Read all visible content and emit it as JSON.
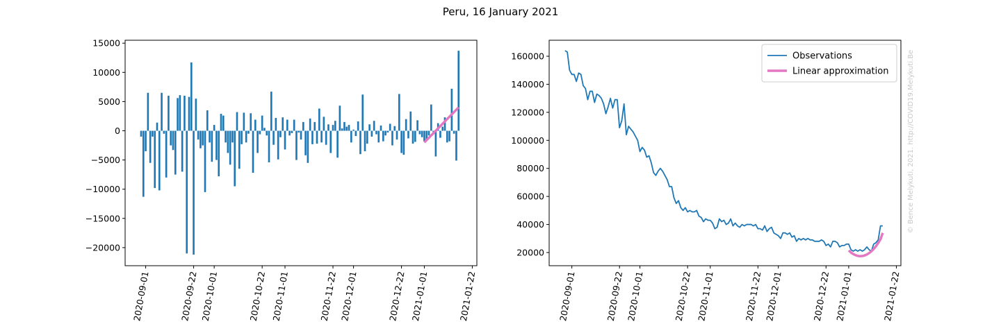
{
  "title": "Peru, 16 January 2021",
  "watermark": "© Bence Melykuti, 2021. http://COVID19.Melykuti.Be",
  "chart_data": [
    {
      "type": "bar",
      "x": [
        "2020-08-30",
        "2020-08-31",
        "2020-09-01",
        "2020-09-02",
        "2020-09-03",
        "2020-09-04",
        "2020-09-05",
        "2020-09-06",
        "2020-09-07",
        "2020-09-08",
        "2020-09-09",
        "2020-09-10",
        "2020-09-11",
        "2020-09-12",
        "2020-09-13",
        "2020-09-14",
        "2020-09-15",
        "2020-09-16",
        "2020-09-17",
        "2020-09-18",
        "2020-09-19",
        "2020-09-20",
        "2020-09-21",
        "2020-09-22",
        "2020-09-23",
        "2020-09-24",
        "2020-09-25",
        "2020-09-26",
        "2020-09-27",
        "2020-09-28",
        "2020-09-29",
        "2020-09-30",
        "2020-10-01",
        "2020-10-02",
        "2020-10-03",
        "2020-10-04",
        "2020-10-05",
        "2020-10-06",
        "2020-10-07",
        "2020-10-08",
        "2020-10-09",
        "2020-10-10",
        "2020-10-11",
        "2020-10-12",
        "2020-10-13",
        "2020-10-14",
        "2020-10-15",
        "2020-10-16",
        "2020-10-17",
        "2020-10-18",
        "2020-10-19",
        "2020-10-20",
        "2020-10-21",
        "2020-10-22",
        "2020-10-23",
        "2020-10-24",
        "2020-10-25",
        "2020-10-26",
        "2020-10-27",
        "2020-10-28",
        "2020-10-29",
        "2020-10-30",
        "2020-10-31",
        "2020-11-01",
        "2020-11-02",
        "2020-11-03",
        "2020-11-04",
        "2020-11-05",
        "2020-11-06",
        "2020-11-07",
        "2020-11-08",
        "2020-11-09",
        "2020-11-10",
        "2020-11-11",
        "2020-11-12",
        "2020-11-13",
        "2020-11-14",
        "2020-11-15",
        "2020-11-16",
        "2020-11-17",
        "2020-11-18",
        "2020-11-19",
        "2020-11-20",
        "2020-11-21",
        "2020-11-22",
        "2020-11-23",
        "2020-11-24",
        "2020-11-25",
        "2020-11-26",
        "2020-11-27",
        "2020-11-28",
        "2020-11-29",
        "2020-11-30",
        "2020-12-01",
        "2020-12-02",
        "2020-12-03",
        "2020-12-04",
        "2020-12-05",
        "2020-12-06",
        "2020-12-07",
        "2020-12-08",
        "2020-12-09",
        "2020-12-10",
        "2020-12-11",
        "2020-12-12",
        "2020-12-13",
        "2020-12-14",
        "2020-12-15",
        "2020-12-16",
        "2020-12-17",
        "2020-12-18",
        "2020-12-19",
        "2020-12-20",
        "2020-12-21",
        "2020-12-22",
        "2020-12-23",
        "2020-12-24",
        "2020-12-25",
        "2020-12-26",
        "2020-12-27",
        "2020-12-28",
        "2020-12-29",
        "2020-12-30",
        "2020-12-31",
        "2021-01-01",
        "2021-01-02",
        "2021-01-03",
        "2021-01-04",
        "2021-01-05",
        "2021-01-06",
        "2021-01-07",
        "2021-01-08",
        "2021-01-09",
        "2021-01-10",
        "2021-01-11",
        "2021-01-12",
        "2021-01-13",
        "2021-01-14",
        "2021-01-15",
        "2021-01-16"
      ],
      "values": [
        -1000,
        -11300,
        -3500,
        6500,
        -5500,
        -1000,
        -9800,
        1400,
        -10200,
        6500,
        -500,
        -8000,
        6000,
        -2500,
        -3300,
        -7500,
        5600,
        6100,
        -7000,
        6000,
        -21000,
        5800,
        11700,
        -21200,
        5500,
        -1500,
        -3000,
        -2500,
        -10500,
        3500,
        -2000,
        -5300,
        1000,
        -5000,
        -7800,
        2900,
        2600,
        -2000,
        -3800,
        -5800,
        -2000,
        -9500,
        3200,
        -6500,
        -2300,
        3100,
        -2000,
        -500,
        3000,
        -7200,
        1900,
        -3800,
        -600,
        2600,
        500,
        -800,
        -5400,
        6700,
        -2400,
        2200,
        -4900,
        -1100,
        2300,
        -3200,
        1900,
        -800,
        -400,
        1900,
        -5000,
        -300,
        -1500,
        1500,
        -4200,
        -5500,
        2100,
        -2300,
        1500,
        -2200,
        3800,
        -2000,
        2400,
        -2400,
        1100,
        -3800,
        1000,
        1700,
        -4600,
        4300,
        400,
        1500,
        700,
        1000,
        -2000,
        200,
        -900,
        1600,
        -4000,
        6200,
        -3500,
        -2200,
        1100,
        -1000,
        1700,
        -600,
        -2000,
        900,
        -1800,
        -800,
        -300,
        1200,
        -2500,
        800,
        -1500,
        6300,
        -3800,
        -4100,
        2000,
        -1300,
        3300,
        -2200,
        -1900,
        1800,
        -600,
        -1100,
        -1800,
        -1500,
        -800,
        4500,
        -600,
        -4400,
        1300,
        -1200,
        700,
        2300,
        -2000,
        -1800,
        7200,
        -500,
        -5100,
        13700
      ],
      "color": "#1f77b4",
      "fit": {
        "x": [
          "2021-01-01",
          "2021-01-16"
        ],
        "values": [
          -2000,
          4000
        ],
        "color": "#e377c2"
      },
      "xlim": [
        "2020-08-23",
        "2021-01-24"
      ],
      "xticks": [
        "2020-09-01",
        "2020-09-22",
        "2020-10-01",
        "2020-10-22",
        "2020-11-01",
        "2020-11-22",
        "2020-12-01",
        "2020-12-22",
        "2021-01-01",
        "2021-01-22"
      ],
      "ylim": [
        -23100,
        15500
      ],
      "yticks": [
        {
          "value": -20000,
          "label": "−20000"
        },
        {
          "value": -15000,
          "label": "−15000"
        },
        {
          "value": -10000,
          "label": "−10000"
        },
        {
          "value": -5000,
          "label": "−5000"
        },
        0,
        5000,
        10000,
        15000
      ]
    },
    {
      "type": "line",
      "series": [
        {
          "name": "Observations",
          "color": "#1f77b4",
          "x": [
            "2020-08-29",
            "2020-08-30",
            "2020-08-31",
            "2020-09-01",
            "2020-09-02",
            "2020-09-03",
            "2020-09-04",
            "2020-09-05",
            "2020-09-06",
            "2020-09-07",
            "2020-09-08",
            "2020-09-09",
            "2020-09-10",
            "2020-09-11",
            "2020-09-12",
            "2020-09-13",
            "2020-09-14",
            "2020-09-15",
            "2020-09-16",
            "2020-09-17",
            "2020-09-18",
            "2020-09-19",
            "2020-09-20",
            "2020-09-21",
            "2020-09-22",
            "2020-09-23",
            "2020-09-24",
            "2020-09-25",
            "2020-09-26",
            "2020-09-27",
            "2020-09-28",
            "2020-09-29",
            "2020-09-30",
            "2020-10-01",
            "2020-10-02",
            "2020-10-03",
            "2020-10-04",
            "2020-10-05",
            "2020-10-06",
            "2020-10-07",
            "2020-10-08",
            "2020-10-09",
            "2020-10-10",
            "2020-10-11",
            "2020-10-12",
            "2020-10-13",
            "2020-10-14",
            "2020-10-15",
            "2020-10-16",
            "2020-10-17",
            "2020-10-18",
            "2020-10-19",
            "2020-10-20",
            "2020-10-21",
            "2020-10-22",
            "2020-10-23",
            "2020-10-24",
            "2020-10-25",
            "2020-10-26",
            "2020-10-27",
            "2020-10-28",
            "2020-10-29",
            "2020-10-30",
            "2020-10-31",
            "2020-11-01",
            "2020-11-02",
            "2020-11-03",
            "2020-11-04",
            "2020-11-05",
            "2020-11-06",
            "2020-11-07",
            "2020-11-08",
            "2020-11-09",
            "2020-11-10",
            "2020-11-11",
            "2020-11-12",
            "2020-11-13",
            "2020-11-14",
            "2020-11-15",
            "2020-11-16",
            "2020-11-17",
            "2020-11-18",
            "2020-11-19",
            "2020-11-20",
            "2020-11-21",
            "2020-11-22",
            "2020-11-23",
            "2020-11-24",
            "2020-11-25",
            "2020-11-26",
            "2020-11-27",
            "2020-11-28",
            "2020-11-29",
            "2020-11-30",
            "2020-12-01",
            "2020-12-02",
            "2020-12-03",
            "2020-12-04",
            "2020-12-05",
            "2020-12-06",
            "2020-12-07",
            "2020-12-08",
            "2020-12-09",
            "2020-12-10",
            "2020-12-11",
            "2020-12-12",
            "2020-12-13",
            "2020-12-14",
            "2020-12-15",
            "2020-12-16",
            "2020-12-17",
            "2020-12-18",
            "2020-12-19",
            "2020-12-20",
            "2020-12-21",
            "2020-12-22",
            "2020-12-23",
            "2020-12-24",
            "2020-12-25",
            "2020-12-26",
            "2020-12-27",
            "2020-12-28",
            "2020-12-29",
            "2020-12-30",
            "2020-12-31",
            "2021-01-01",
            "2021-01-02",
            "2021-01-03",
            "2021-01-04",
            "2021-01-05",
            "2021-01-06",
            "2021-01-07",
            "2021-01-08",
            "2021-01-09",
            "2021-01-10",
            "2021-01-11",
            "2021-01-12",
            "2021-01-13",
            "2021-01-14",
            "2021-01-15",
            "2021-01-16"
          ],
          "values": [
            164000,
            163000,
            150000,
            147000,
            147000,
            142000,
            148000,
            147000,
            139000,
            137000,
            129000,
            135000,
            135000,
            127000,
            133000,
            132000,
            130000,
            126000,
            119000,
            124000,
            130000,
            123000,
            129000,
            129000,
            109000,
            114000,
            126000,
            104000,
            110000,
            108000,
            106000,
            103000,
            100000,
            92000,
            95000,
            93000,
            88000,
            89000,
            84000,
            77000,
            75000,
            78000,
            80000,
            78000,
            75000,
            72000,
            67000,
            67000,
            59000,
            55000,
            57000,
            52000,
            50000,
            52000,
            49000,
            50000,
            49000,
            49000,
            50000,
            46000,
            45000,
            42000,
            44000,
            43000,
            43000,
            41000,
            37000,
            38000,
            44000,
            42000,
            43000,
            40000,
            41000,
            44000,
            39000,
            41000,
            39000,
            38000,
            40000,
            39000,
            40000,
            40000,
            40000,
            39000,
            40000,
            37000,
            37000,
            36000,
            39000,
            35000,
            37000,
            38000,
            34000,
            33000,
            32000,
            30000,
            34000,
            34000,
            33000,
            34000,
            31000,
            32000,
            28000,
            30000,
            29000,
            30000,
            29000,
            30000,
            29000,
            29000,
            28000,
            28000,
            28000,
            29000,
            28000,
            25000,
            26000,
            24000,
            28000,
            28000,
            27000,
            24000,
            25000,
            25000,
            26000,
            26000,
            22000,
            21000,
            22000,
            21000,
            22000,
            21000,
            22000,
            24000,
            22000,
            21000,
            26000,
            27000,
            29000,
            39000,
            39000
          ]
        },
        {
          "name": "Linear approximation",
          "color": "#e377c2",
          "x": [
            "2021-01-01",
            "2021-01-02",
            "2021-01-03",
            "2021-01-04",
            "2021-01-05",
            "2021-01-06",
            "2021-01-07",
            "2021-01-08",
            "2021-01-09",
            "2021-01-10",
            "2021-01-11",
            "2021-01-12",
            "2021-01-13",
            "2021-01-14",
            "2021-01-15",
            "2021-01-16"
          ],
          "values": [
            21500,
            20000,
            18900,
            18100,
            17600,
            17400,
            17500,
            17900,
            18600,
            19600,
            20900,
            22500,
            24500,
            26800,
            29400,
            34000
          ]
        }
      ],
      "legend": "upper right",
      "xlim": [
        "2020-08-22",
        "2021-01-24"
      ],
      "xticks": [
        "2020-09-01",
        "2020-09-22",
        "2020-10-01",
        "2020-10-22",
        "2020-11-01",
        "2020-11-22",
        "2020-12-01",
        "2020-12-22",
        "2021-01-01",
        "2021-01-22"
      ],
      "ylim": [
        10600,
        171400
      ],
      "yticks": [
        20000,
        40000,
        60000,
        80000,
        100000,
        120000,
        140000,
        160000
      ]
    }
  ]
}
